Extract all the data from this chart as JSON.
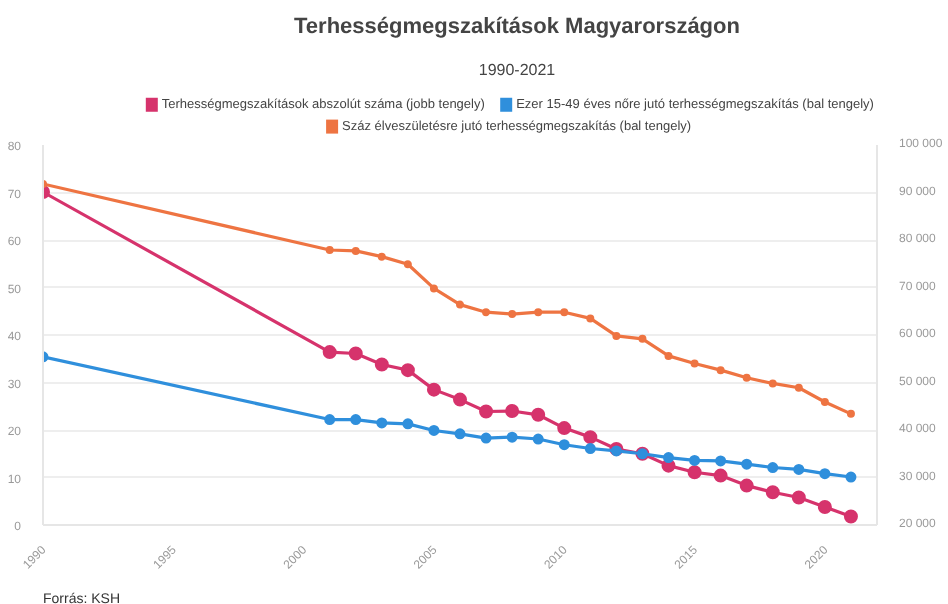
{
  "chart_data": {
    "type": "line",
    "title": "Terhességmegszakítások Magyarországon",
    "subtitle": "1990-2021",
    "x": [
      1990,
      2001,
      2002,
      2003,
      2004,
      2005,
      2006,
      2007,
      2008,
      2009,
      2010,
      2011,
      2012,
      2013,
      2014,
      2015,
      2016,
      2017,
      2018,
      2019,
      2020,
      2021
    ],
    "series": [
      {
        "name": "Terhességmegszakítások abszolút száma (jobb tengely)",
        "color": "#d6336c",
        "axis": "y2",
        "values": [
          90100,
          56400,
          56100,
          53800,
          52600,
          48500,
          46400,
          43900,
          44000,
          43200,
          40400,
          38500,
          36000,
          35000,
          32500,
          31100,
          30400,
          28300,
          26900,
          25800,
          23800,
          21800
        ]
      },
      {
        "name": "Ezer 15-49 éves nőre jutó terhességmegszakítás (bal tengely)",
        "color": "#2f8fdc",
        "values": [
          35.4,
          22.2,
          22.2,
          21.5,
          21.3,
          19.9,
          19.2,
          18.3,
          18.5,
          18.1,
          16.9,
          16.1,
          15.6,
          15.0,
          14.2,
          13.6,
          13.5,
          12.8,
          12.1,
          11.7,
          10.8,
          10.1
        ]
      },
      {
        "name": "Száz élveszületésre jutó terhességmegszakítás (bal tengely)",
        "color": "#ee7442",
        "values": [
          71.8,
          57.9,
          57.7,
          56.5,
          54.9,
          49.8,
          46.4,
          44.8,
          44.4,
          44.8,
          44.8,
          43.5,
          39.8,
          39.2,
          35.6,
          34.0,
          32.6,
          31.0,
          29.8,
          28.9,
          25.9,
          23.4
        ]
      }
    ],
    "xlim": [
      1990,
      2022
    ],
    "xticks": [
      1990,
      1995,
      2000,
      2005,
      2010,
      2015,
      2020
    ],
    "ylim": [
      0,
      80
    ],
    "yticks": [
      0,
      10,
      20,
      30,
      40,
      50,
      60,
      70,
      80
    ],
    "y2lim": [
      20000,
      100000
    ],
    "y2ticks": [
      {
        "value": 20000,
        "label": "20 000"
      },
      {
        "value": 30000,
        "label": "30 000"
      },
      {
        "value": 40000,
        "label": "40 000"
      },
      {
        "value": 50000,
        "label": "50 000"
      },
      {
        "value": 60000,
        "label": "60 000"
      },
      {
        "value": 70000,
        "label": "70 000"
      },
      {
        "value": 80000,
        "label": "80 000"
      },
      {
        "value": 90000,
        "label": "90 000"
      },
      {
        "value": 100000,
        "label": "100 000"
      }
    ],
    "grid": "y",
    "legend": "top",
    "marker": "circle",
    "line_style": "solid",
    "annotations": [
      "Forrás: KSH"
    ]
  }
}
